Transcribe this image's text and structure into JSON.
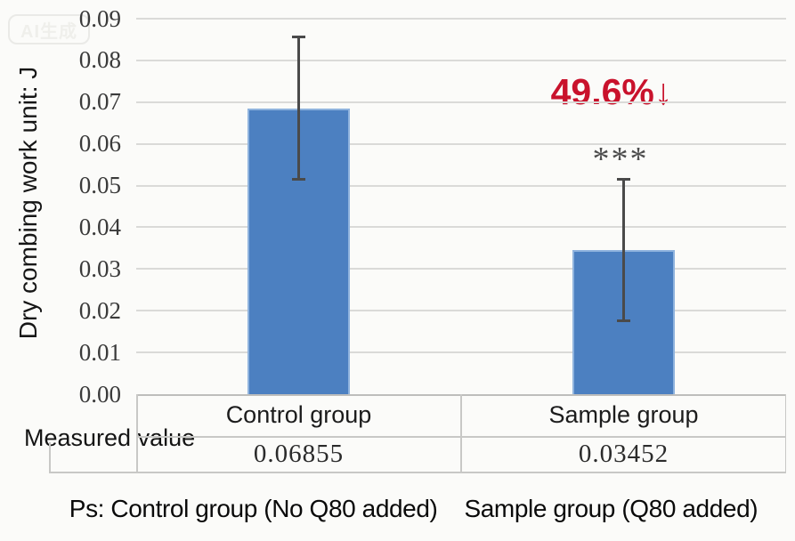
{
  "watermark": "AI生成",
  "chart_data": {
    "type": "bar",
    "title": "",
    "ylabel": "Dry combing work unit: J",
    "xlabel": "",
    "ylim": [
      0,
      0.09
    ],
    "ytick_step": 0.01,
    "ytick_labels": [
      "0.00",
      "0.01",
      "0.02",
      "0.03",
      "0.04",
      "0.05",
      "0.06",
      "0.07",
      "0.08",
      "0.09"
    ],
    "grid": true,
    "categories": [
      "Control group",
      "Sample group"
    ],
    "series": [
      {
        "name": "Measured value",
        "values": [
          0.06855,
          0.03452
        ],
        "errors": [
          0.017,
          0.017
        ]
      }
    ],
    "annotations": [
      {
        "text": "49.6%↓",
        "color": "#c9122c",
        "target": "Sample group"
      },
      {
        "text": "***",
        "color": "#4d4d4d",
        "target": "Sample group"
      }
    ],
    "data_table": {
      "row_label": "Measured value",
      "values": [
        "0.06855",
        "0.03452"
      ]
    },
    "legend": null
  },
  "caption": {
    "left": "Ps: Control group (No Q80 added)",
    "right": "Sample group (Q80 added)"
  },
  "colors": {
    "bar_fill": "#4c80c1",
    "bar_edge": "#8fb3de",
    "error_bar": "#4a4a4a",
    "gridline": "#dadad8",
    "table_border": "#c8c8c6",
    "axis_line": "#bebebc",
    "annotation_red": "#c9122c",
    "significance_gray": "#4d4d4d",
    "background": "#fbfbf9"
  }
}
